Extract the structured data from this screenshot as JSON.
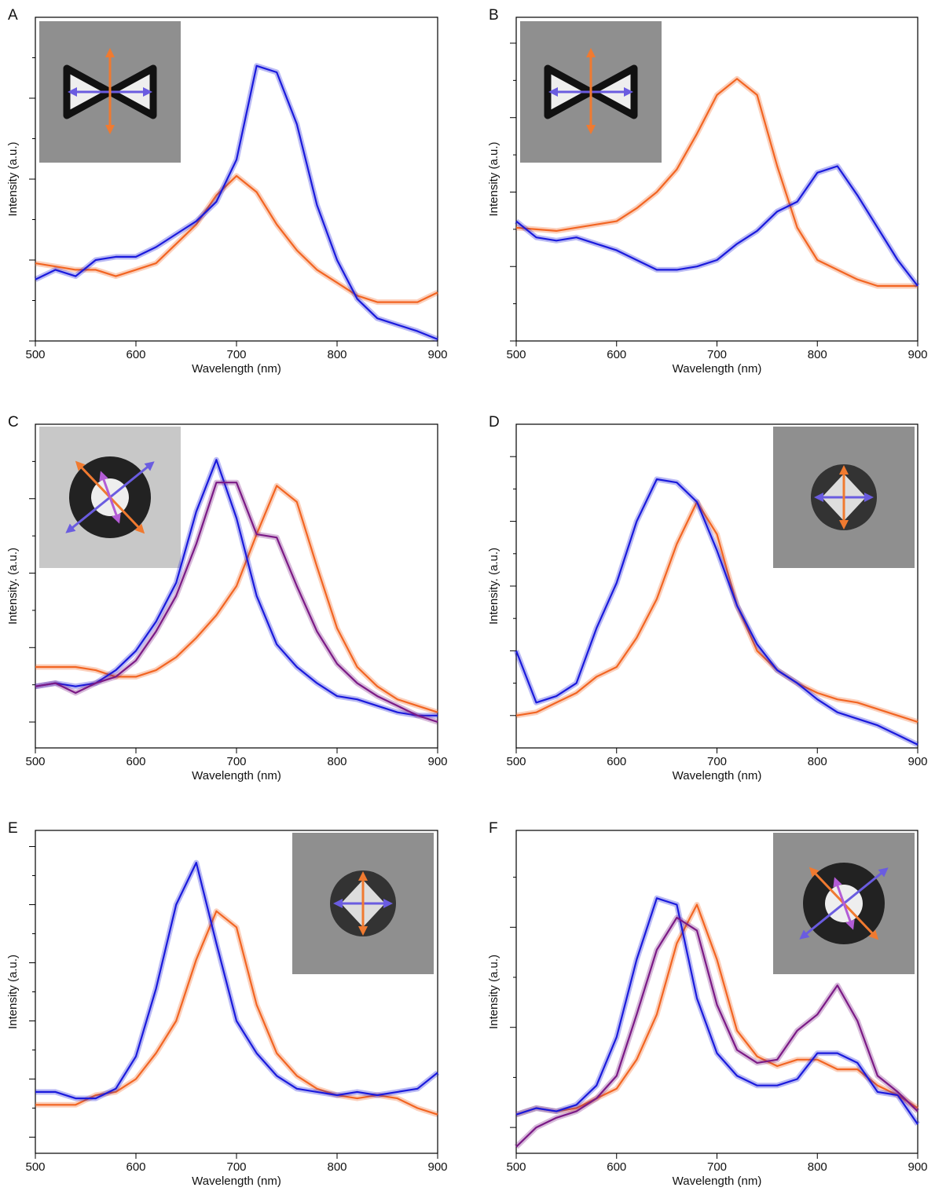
{
  "chart_data": [
    {
      "type": "line",
      "label": "A",
      "xlabel": "Wavelength (nm)",
      "ylabel": "Intensity (a.u.)",
      "x": [
        500,
        520,
        540,
        560,
        580,
        600,
        620,
        640,
        660,
        680,
        700,
        720,
        740,
        760,
        780,
        800,
        820,
        840,
        860,
        880,
        900
      ],
      "xlim": [
        500,
        900
      ],
      "xticks": [
        500,
        600,
        700,
        800,
        900
      ],
      "ylim": [
        0,
        1
      ],
      "yticks": [
        0,
        0.125,
        0.25,
        0.375,
        0.5,
        0.625,
        0.75,
        0.875
      ],
      "series": [
        {
          "color": "#f26522",
          "values": [
            0.24,
            0.23,
            0.22,
            0.22,
            0.2,
            0.22,
            0.24,
            0.3,
            0.36,
            0.45,
            0.51,
            0.46,
            0.36,
            0.28,
            0.22,
            0.18,
            0.14,
            0.12,
            0.12,
            0.12,
            0.15
          ]
        },
        {
          "color": "#1a1adc",
          "values": [
            0.19,
            0.22,
            0.2,
            0.25,
            0.26,
            0.26,
            0.29,
            0.33,
            0.37,
            0.43,
            0.56,
            0.85,
            0.83,
            0.67,
            0.42,
            0.25,
            0.13,
            0.07,
            0.05,
            0.03,
            0.005
          ]
        }
      ]
    },
    {
      "type": "line",
      "label": "B",
      "xlabel": "Wavelength (nm)",
      "ylabel": "Intensity (a.u.)",
      "x": [
        500,
        520,
        540,
        560,
        580,
        600,
        620,
        640,
        660,
        680,
        700,
        720,
        740,
        760,
        780,
        800,
        820,
        840,
        860,
        880,
        900
      ],
      "xlim": [
        500,
        900
      ],
      "xticks": [
        500,
        600,
        700,
        800,
        900
      ],
      "ylim": [
        0,
        1
      ],
      "yticks": [
        0,
        0.115,
        0.23,
        0.345,
        0.46,
        0.575,
        0.69,
        0.805,
        0.92
      ],
      "series": [
        {
          "color": "#f26522",
          "values": [
            0.35,
            0.345,
            0.34,
            0.35,
            0.36,
            0.37,
            0.41,
            0.46,
            0.53,
            0.64,
            0.76,
            0.81,
            0.76,
            0.54,
            0.35,
            0.25,
            0.22,
            0.19,
            0.17,
            0.17,
            0.17
          ]
        },
        {
          "color": "#1a1adc",
          "values": [
            0.37,
            0.32,
            0.31,
            0.32,
            0.3,
            0.28,
            0.25,
            0.22,
            0.22,
            0.23,
            0.25,
            0.3,
            0.34,
            0.4,
            0.43,
            0.52,
            0.54,
            0.45,
            0.35,
            0.25,
            0.17
          ]
        }
      ]
    },
    {
      "type": "line",
      "label": "C",
      "xlabel": "Wavelength (nm)",
      "ylabel": "Intensity. (a.u.)",
      "x": [
        500,
        520,
        540,
        560,
        580,
        600,
        620,
        640,
        660,
        680,
        700,
        720,
        740,
        760,
        780,
        800,
        820,
        840,
        860,
        880,
        900
      ],
      "xlim": [
        500,
        900
      ],
      "xticks": [
        500,
        600,
        700,
        800,
        900
      ],
      "ylim": [
        0,
        1
      ],
      "yticks": [
        0.08,
        0.195,
        0.31,
        0.425,
        0.54,
        0.655,
        0.77,
        0.885
      ],
      "series": [
        {
          "color": "#f26522",
          "values": [
            0.25,
            0.25,
            0.25,
            0.24,
            0.22,
            0.22,
            0.24,
            0.28,
            0.34,
            0.41,
            0.5,
            0.66,
            0.81,
            0.76,
            0.56,
            0.37,
            0.25,
            0.19,
            0.15,
            0.13,
            0.11
          ]
        },
        {
          "color": "#1a1adc",
          "values": [
            0.19,
            0.2,
            0.19,
            0.2,
            0.24,
            0.3,
            0.39,
            0.51,
            0.73,
            0.89,
            0.71,
            0.47,
            0.32,
            0.25,
            0.2,
            0.16,
            0.15,
            0.13,
            0.11,
            0.1,
            0.1
          ]
        },
        {
          "color": "#7b1a86",
          "values": [
            0.19,
            0.2,
            0.17,
            0.2,
            0.22,
            0.27,
            0.36,
            0.47,
            0.63,
            0.82,
            0.82,
            0.66,
            0.65,
            0.5,
            0.36,
            0.26,
            0.2,
            0.16,
            0.13,
            0.1,
            0.08
          ]
        }
      ]
    },
    {
      "type": "line",
      "label": "D",
      "xlabel": "Wavelength (nm)",
      "ylabel": "Intensity. (a.u.)",
      "x": [
        500,
        520,
        540,
        560,
        580,
        600,
        620,
        640,
        660,
        680,
        700,
        720,
        740,
        760,
        780,
        800,
        820,
        840,
        860,
        880,
        900
      ],
      "xlim": [
        500,
        900
      ],
      "xticks": [
        500,
        600,
        700,
        800,
        900
      ],
      "ylim": [
        0,
        1
      ],
      "yticks": [
        0.1,
        0.2,
        0.3,
        0.4,
        0.5,
        0.6,
        0.7,
        0.8,
        0.9
      ],
      "series": [
        {
          "color": "#f26522",
          "values": [
            0.1,
            0.11,
            0.14,
            0.17,
            0.22,
            0.25,
            0.34,
            0.46,
            0.63,
            0.76,
            0.66,
            0.44,
            0.3,
            0.24,
            0.2,
            0.17,
            0.15,
            0.14,
            0.12,
            0.1,
            0.08
          ]
        },
        {
          "color": "#1a1adc",
          "values": [
            0.3,
            0.14,
            0.16,
            0.2,
            0.37,
            0.51,
            0.7,
            0.83,
            0.82,
            0.76,
            0.61,
            0.44,
            0.32,
            0.24,
            0.2,
            0.15,
            0.11,
            0.09,
            0.07,
            0.04,
            0.01
          ]
        }
      ]
    },
    {
      "type": "line",
      "label": "E",
      "xlabel": "Wavelength (nm)",
      "ylabel": "Intensity (a.u.)",
      "x": [
        500,
        520,
        540,
        560,
        580,
        600,
        620,
        640,
        660,
        680,
        700,
        720,
        740,
        760,
        780,
        800,
        820,
        840,
        860,
        880,
        900
      ],
      "xlim": [
        500,
        900
      ],
      "xticks": [
        500,
        600,
        700,
        800,
        900
      ],
      "ylim": [
        0,
        1
      ],
      "yticks": [
        0.05,
        0.14,
        0.23,
        0.32,
        0.41,
        0.5,
        0.59,
        0.68,
        0.77,
        0.86,
        0.95
      ],
      "series": [
        {
          "color": "#f26522",
          "values": [
            0.15,
            0.15,
            0.15,
            0.18,
            0.19,
            0.23,
            0.31,
            0.41,
            0.6,
            0.75,
            0.7,
            0.46,
            0.31,
            0.24,
            0.2,
            0.18,
            0.17,
            0.18,
            0.17,
            0.14,
            0.12
          ]
        },
        {
          "color": "#1a1adc",
          "values": [
            0.19,
            0.19,
            0.17,
            0.17,
            0.2,
            0.3,
            0.51,
            0.77,
            0.9,
            0.65,
            0.41,
            0.31,
            0.24,
            0.2,
            0.19,
            0.18,
            0.19,
            0.18,
            0.19,
            0.2,
            0.25
          ]
        }
      ]
    },
    {
      "type": "line",
      "label": "F",
      "xlabel": "Wavelength (nm)",
      "ylabel": "Intensity (a.u.)",
      "x": [
        500,
        520,
        540,
        560,
        580,
        600,
        620,
        640,
        660,
        680,
        700,
        720,
        740,
        760,
        780,
        800,
        820,
        840,
        860,
        880,
        900
      ],
      "xlim": [
        500,
        900
      ],
      "xticks": [
        500,
        600,
        700,
        800,
        900
      ],
      "ylim": [
        0,
        1
      ],
      "yticks": [
        0.08,
        0.235,
        0.39,
        0.545,
        0.7,
        0.855
      ],
      "series": [
        {
          "color": "#f26522",
          "values": [
            0.12,
            0.14,
            0.13,
            0.14,
            0.17,
            0.2,
            0.29,
            0.43,
            0.65,
            0.77,
            0.6,
            0.38,
            0.3,
            0.27,
            0.29,
            0.29,
            0.26,
            0.26,
            0.21,
            0.18,
            0.14
          ]
        },
        {
          "color": "#1a1adc",
          "values": [
            0.12,
            0.14,
            0.13,
            0.15,
            0.21,
            0.36,
            0.6,
            0.79,
            0.77,
            0.48,
            0.31,
            0.24,
            0.21,
            0.21,
            0.23,
            0.31,
            0.31,
            0.28,
            0.19,
            0.18,
            0.09
          ]
        },
        {
          "color": "#7b1a86",
          "values": [
            0.02,
            0.08,
            0.11,
            0.13,
            0.17,
            0.24,
            0.43,
            0.63,
            0.73,
            0.69,
            0.46,
            0.32,
            0.28,
            0.29,
            0.38,
            0.43,
            0.52,
            0.41,
            0.24,
            0.19,
            0.13
          ]
        }
      ]
    }
  ]
}
